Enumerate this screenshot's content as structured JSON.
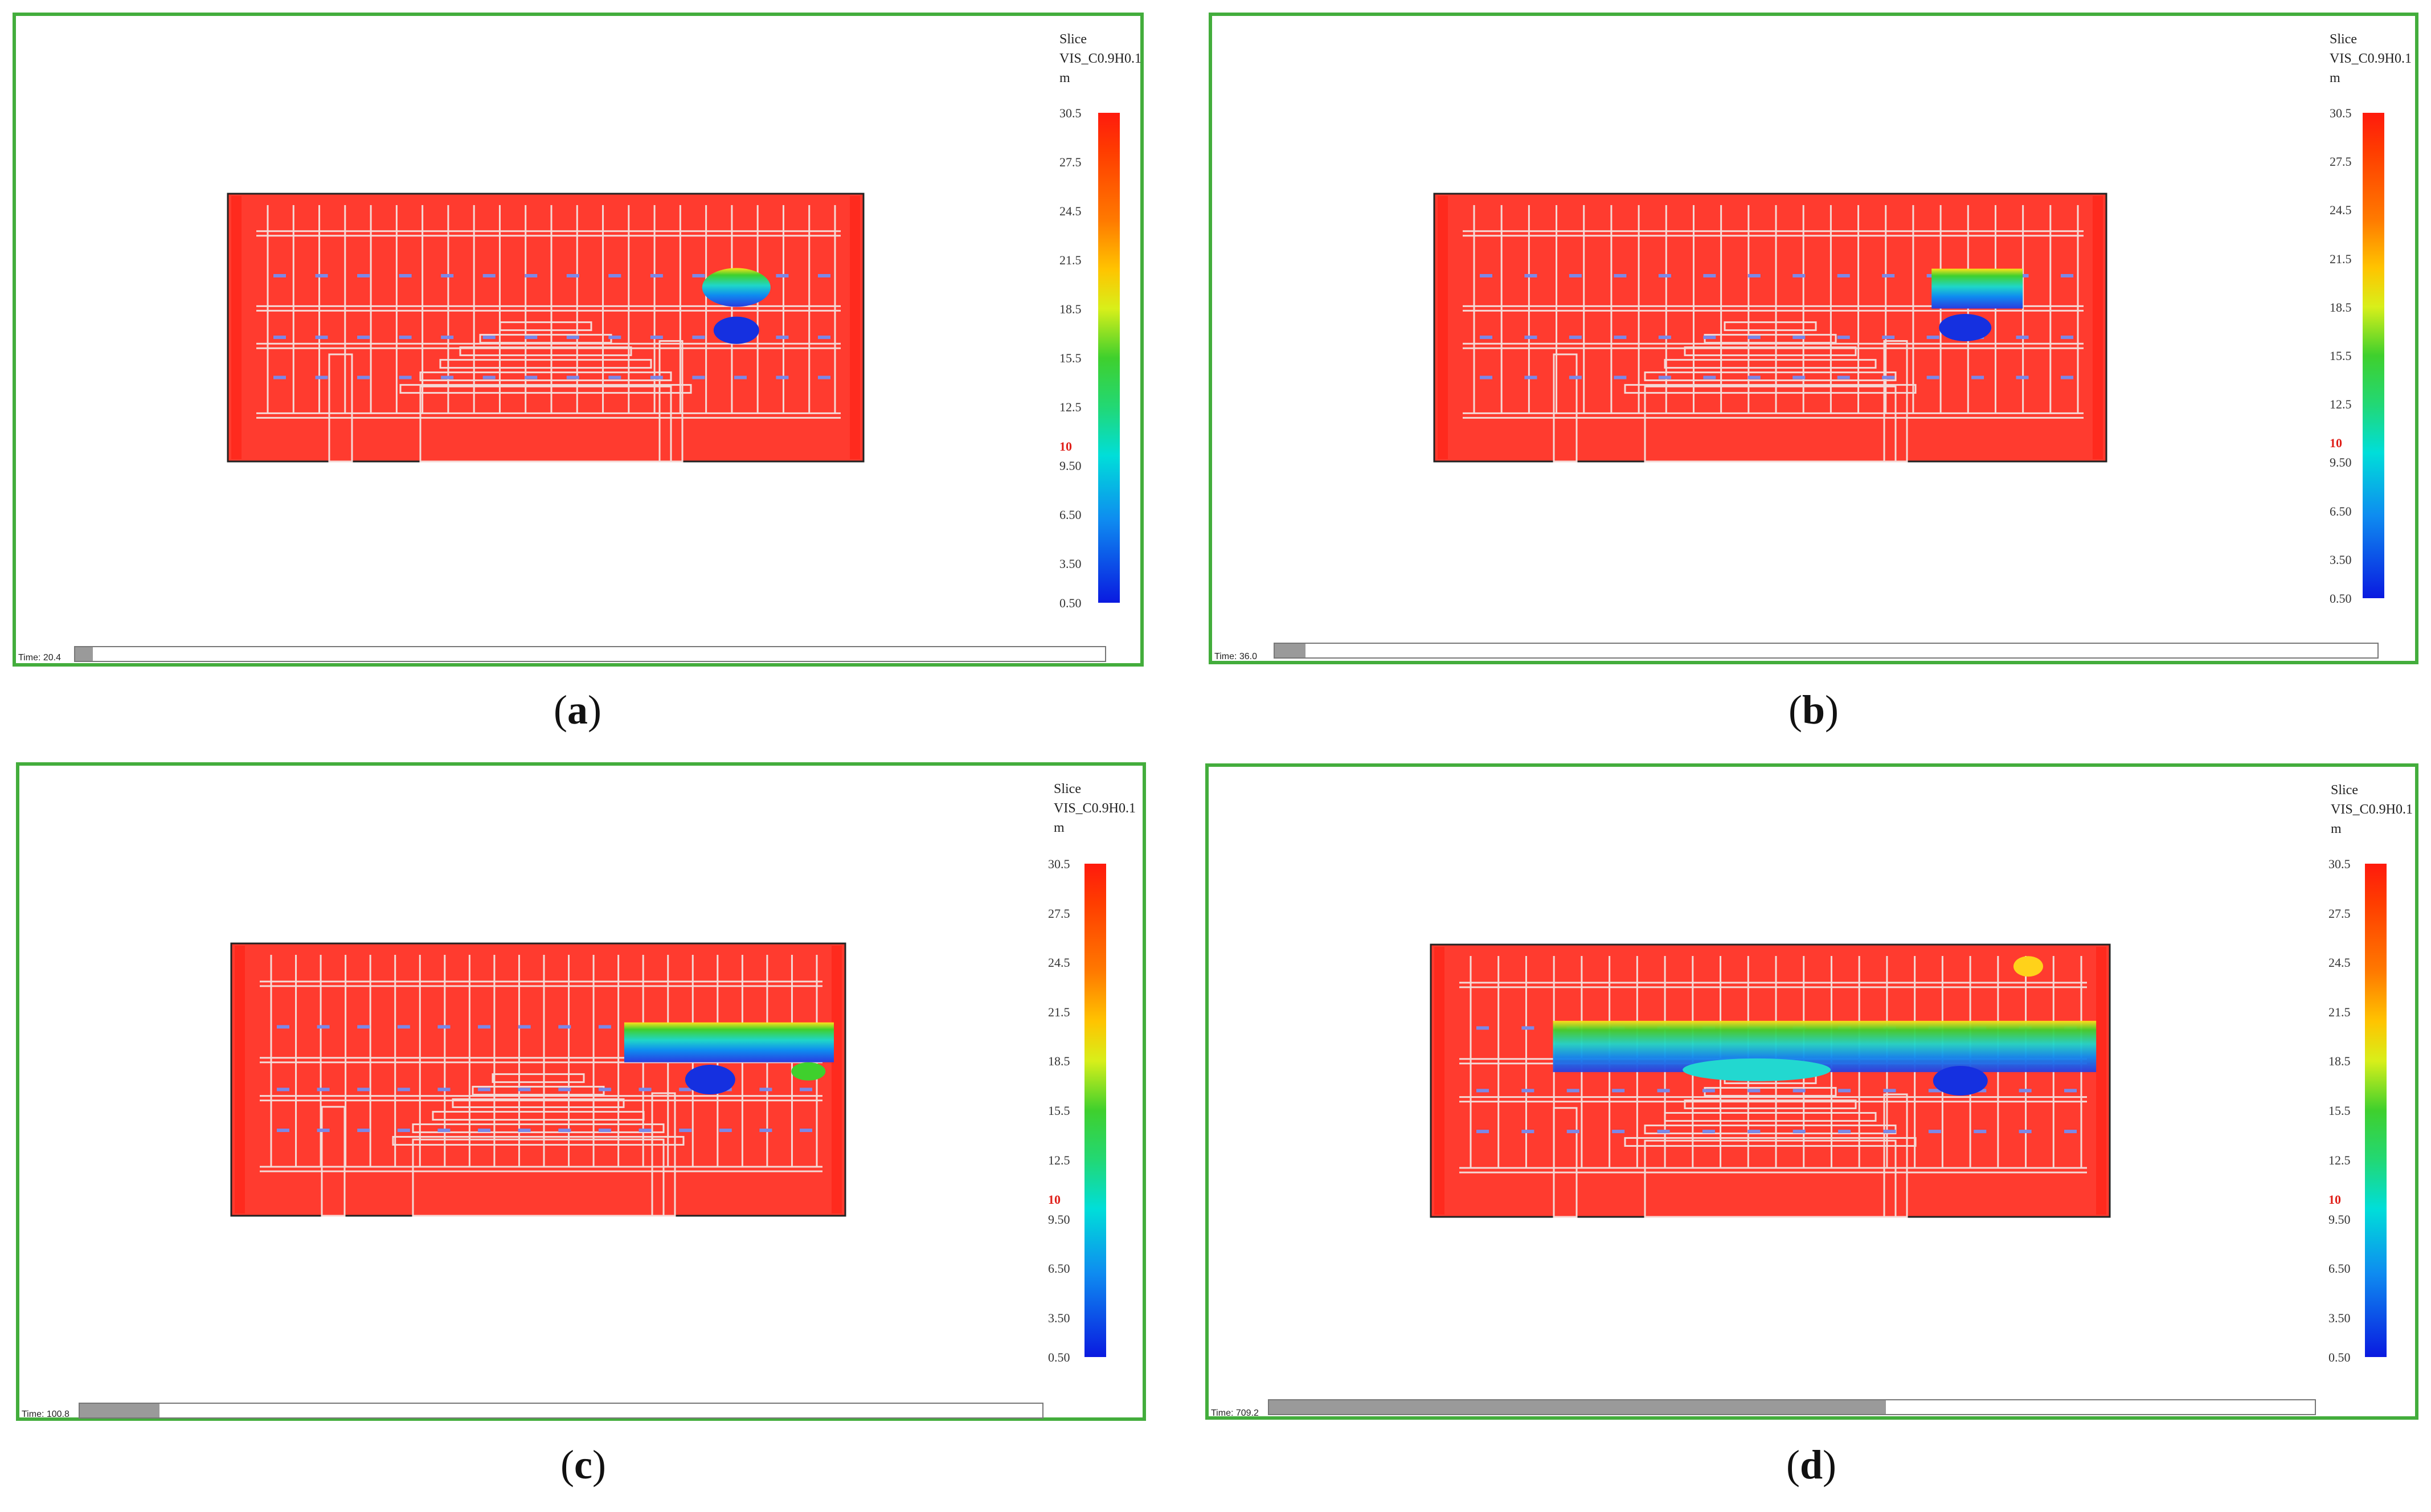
{
  "colors": {
    "frame": "#43ad3c",
    "smoke_red": "#ff3b2f",
    "slider_fill": "#9a9a9a"
  },
  "panels": [
    {
      "id": "a",
      "caption": "a",
      "slice_title": "Slice\nVIS_C0.9H0.1\nm",
      "ticks": [
        "30.5",
        "27.5",
        "24.5",
        "21.5",
        "18.5",
        "15.5",
        "12.5",
        "10",
        "9.50",
        "6.50",
        "3.50",
        "0.50"
      ],
      "time_label": "Time: 20.4",
      "progress": 0.017
    },
    {
      "id": "b",
      "caption": "b",
      "slice_title": "Slice\nVIS_C0.9H0.1\nm",
      "ticks": [
        "30.5",
        "27.5",
        "24.5",
        "21.5",
        "18.5",
        "15.5",
        "12.5",
        "10",
        "9.50",
        "6.50",
        "3.50",
        "0.50"
      ],
      "time_label": "Time: 36.0",
      "progress": 0.028
    },
    {
      "id": "c",
      "caption": "c",
      "slice_title": "Slice\nVIS_C0.9H0.1\nm",
      "ticks": [
        "30.5",
        "27.5",
        "24.5",
        "21.5",
        "18.5",
        "15.5",
        "12.5",
        "10",
        "9.50",
        "6.50",
        "3.50",
        "0.50"
      ],
      "time_label": "Time: 100.8",
      "progress": 0.083
    },
    {
      "id": "d",
      "caption": "d",
      "slice_title": "Slice\nVIS_C0.9H0.1\nm",
      "ticks": [
        "30.5",
        "27.5",
        "24.5",
        "21.5",
        "18.5",
        "15.5",
        "12.5",
        "10",
        "9.50",
        "6.50",
        "3.50",
        "0.50"
      ],
      "time_label": "Time: 709.2",
      "progress": 0.59
    }
  ]
}
